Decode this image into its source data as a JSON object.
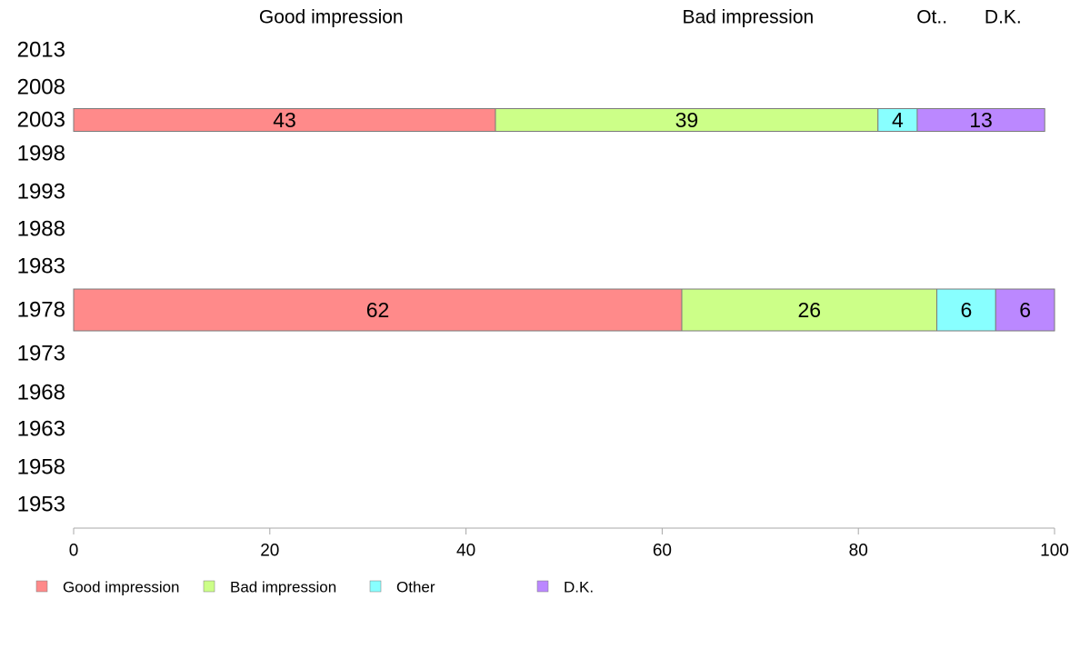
{
  "chart_data": {
    "type": "bar",
    "orientation": "horizontal",
    "stacked": true,
    "categories": [
      "2013",
      "2008",
      "2003",
      "1998",
      "1993",
      "1988",
      "1983",
      "1978",
      "1973",
      "1968",
      "1963",
      "1958",
      "1953"
    ],
    "series": [
      {
        "name": "Good impression",
        "header": "Good impression",
        "color": "#ff8a8a",
        "values": [
          null,
          null,
          43,
          null,
          null,
          null,
          null,
          62,
          null,
          null,
          null,
          null,
          null
        ]
      },
      {
        "name": "Bad impression",
        "header": "Bad impression",
        "color": "#ccff88",
        "values": [
          null,
          null,
          39,
          null,
          null,
          null,
          null,
          26,
          null,
          null,
          null,
          null,
          null
        ]
      },
      {
        "name": "Other",
        "header": "Ot..",
        "color": "#88ffff",
        "values": [
          null,
          null,
          4,
          null,
          null,
          null,
          null,
          6,
          null,
          null,
          null,
          null,
          null
        ]
      },
      {
        "name": "D.K.",
        "header": "D.K.",
        "color": "#bb88ff",
        "values": [
          null,
          null,
          13,
          null,
          null,
          null,
          null,
          6,
          null,
          null,
          null,
          null,
          null
        ]
      }
    ],
    "xlim": [
      0,
      100
    ],
    "xticks": [
      0,
      20,
      40,
      60,
      80,
      100
    ],
    "grid": false,
    "legend": "bottom-left"
  }
}
